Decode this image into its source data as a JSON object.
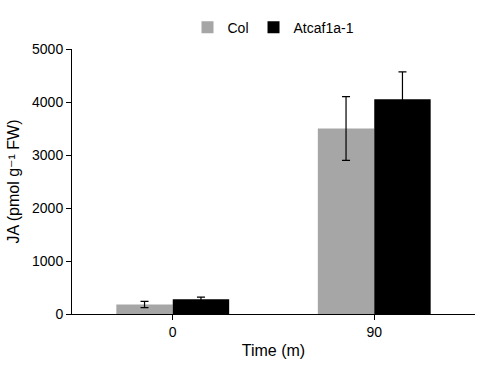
{
  "chart_data": {
    "type": "bar",
    "categories": [
      "0",
      "90"
    ],
    "series": [
      {
        "name": "Col",
        "color": "#a6a6a6",
        "values": [
          180,
          3500
        ],
        "errors": [
          60,
          600
        ]
      },
      {
        "name": "Atcaf1a-1",
        "color": "#000000",
        "values": [
          280,
          4050
        ],
        "errors": [
          40,
          520
        ]
      }
    ],
    "x_label": "Time (m)",
    "y_label": "JA (pmol g⁻¹ FW)",
    "ylim": [
      0,
      5000
    ],
    "yticks": [
      0,
      1000,
      2000,
      3000,
      4000,
      5000
    ],
    "grid": false,
    "legend": "top"
  }
}
